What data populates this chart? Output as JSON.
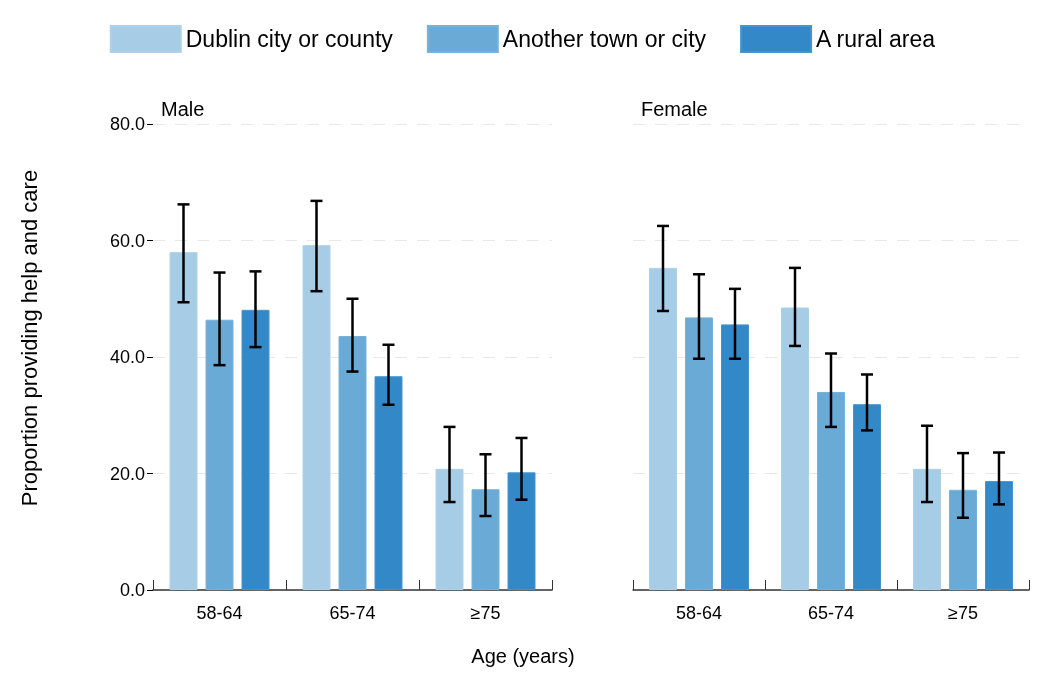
{
  "chart_data": [
    {
      "type": "bar",
      "title": "Male",
      "xlabel": "Age (years)",
      "ylabel": "Proportion providing help and care",
      "categories": [
        "58-64",
        "65-74",
        "≥75"
      ],
      "legend": "top",
      "grid": "y",
      "ylim": [
        0,
        80
      ],
      "yticks": [
        {
          "value": 0,
          "label": "0.0"
        },
        {
          "value": 20,
          "label": "20.0"
        },
        {
          "value": 40,
          "label": "40.0"
        },
        {
          "value": 60,
          "label": "60.0"
        },
        {
          "value": 80,
          "label": "80.0"
        }
      ],
      "series": [
        {
          "name": "Dublin city or county",
          "color": "#a6cce6",
          "values": [
            58.0,
            59.2,
            20.8
          ],
          "errors": [
            [
              49.4,
              66.2
            ],
            [
              51.3,
              66.8
            ],
            [
              15.1,
              28.0
            ]
          ]
        },
        {
          "name": "Another town or city",
          "color": "#6aaad6",
          "values": [
            46.4,
            43.6,
            17.3
          ],
          "errors": [
            [
              38.6,
              54.5
            ],
            [
              37.5,
              50.0
            ],
            [
              12.7,
              23.3
            ]
          ]
        },
        {
          "name": "A rural area",
          "color": "#3389c8",
          "values": [
            48.1,
            36.7,
            20.2
          ],
          "errors": [
            [
              41.7,
              54.7
            ],
            [
              31.8,
              42.1
            ],
            [
              15.5,
              26.1
            ]
          ]
        }
      ]
    },
    {
      "type": "bar",
      "title": "Female",
      "categories": [
        "58-64",
        "65-74",
        "≥75"
      ],
      "grid": "y",
      "tick_labels": "x",
      "ylim": [
        0,
        80
      ],
      "yticks": [
        {
          "value": 0,
          "label": null
        },
        {
          "value": 20,
          "label": null
        },
        {
          "value": 40,
          "label": null
        },
        {
          "value": 60,
          "label": null
        },
        {
          "value": 80,
          "label": null
        }
      ],
      "series": [
        {
          "color": "#a6cce6",
          "values": [
            55.3,
            48.5,
            20.8
          ],
          "errors": [
            [
              47.9,
              62.5
            ],
            [
              41.9,
              55.3
            ],
            [
              15.1,
              28.2
            ]
          ]
        },
        {
          "color": "#6aaad6",
          "values": [
            46.8,
            34.0,
            17.2
          ],
          "errors": [
            [
              39.7,
              54.2
            ],
            [
              28.0,
              40.6
            ],
            [
              12.4,
              23.5
            ]
          ]
        },
        {
          "color": "#3389c8",
          "values": [
            45.6,
            31.9,
            18.7
          ],
          "errors": [
            [
              39.7,
              51.7
            ],
            [
              27.4,
              37.0
            ],
            [
              14.7,
              23.6
            ]
          ]
        }
      ]
    }
  ]
}
